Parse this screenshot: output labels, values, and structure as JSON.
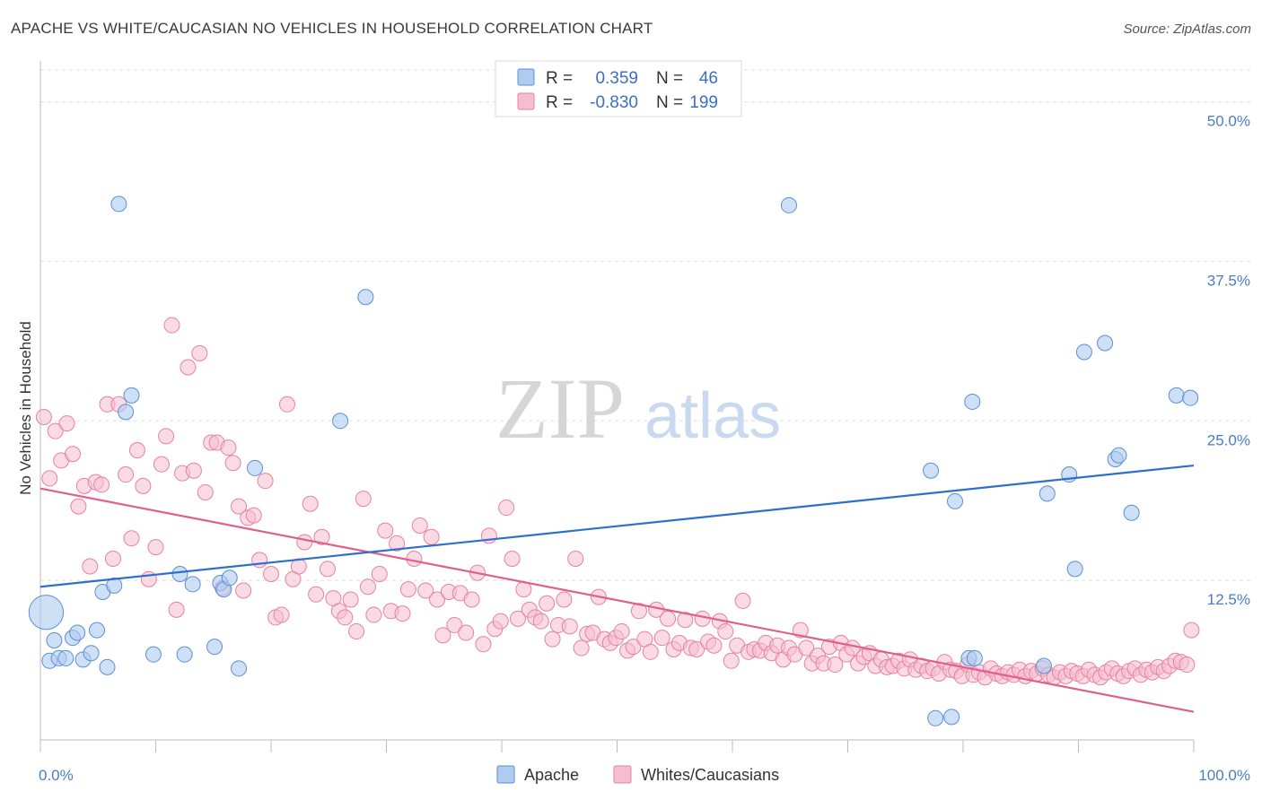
{
  "title": "APACHE VS WHITE/CAUCASIAN NO VEHICLES IN HOUSEHOLD CORRELATION CHART",
  "source": "Source: ZipAtlas.com",
  "watermark": {
    "zip": "ZIP",
    "atlas": "atlas"
  },
  "colors": {
    "apache_fill": "#aecbf0",
    "apache_stroke": "#5b8ed6",
    "apache_line": "#2f6fcc",
    "white_fill": "#f6bdd0",
    "white_stroke": "#e7819f",
    "white_line": "#e0608b",
    "tick_text": "#4a7cc7",
    "grid": "#dddddd"
  },
  "legend": {
    "rows": [
      {
        "r_label": "R =",
        "r_value": "0.359",
        "n_label": "N =",
        "n_value": "46"
      },
      {
        "r_label": "R =",
        "r_value": "-0.830",
        "n_label": "N =",
        "n_value": "199"
      }
    ]
  },
  "bottom_legend": [
    "Apache",
    "Whites/Caucasians"
  ],
  "chart_data": {
    "type": "scatter",
    "xlabel": "",
    "ylabel": "No Vehicles in Household",
    "xlim": [
      0,
      100
    ],
    "ylim": [
      0,
      52.5
    ],
    "x_tick_labels": [
      "0.0%",
      "100.0%"
    ],
    "y_ticks": [
      12.5,
      25.0,
      37.5,
      50.0
    ],
    "y_tick_labels": [
      "12.5%",
      "25.0%",
      "37.5%",
      "50.0%"
    ],
    "grid": true,
    "legend_position": "top-center",
    "series": [
      {
        "name": "Apache",
        "trend": {
          "x": [
            0,
            100
          ],
          "y": [
            12.0,
            21.5
          ]
        },
        "points": [
          [
            0.5,
            10.0,
            3
          ],
          [
            0.8,
            6.2,
            1
          ],
          [
            1.2,
            7.8,
            1
          ],
          [
            1.6,
            6.4,
            1
          ],
          [
            2.2,
            6.4,
            1
          ],
          [
            2.8,
            8.0,
            1
          ],
          [
            3.2,
            8.4,
            1
          ],
          [
            3.7,
            6.3,
            1
          ],
          [
            4.4,
            6.8,
            1
          ],
          [
            4.9,
            8.6,
            1
          ],
          [
            5.4,
            11.6,
            1
          ],
          [
            5.8,
            5.7,
            1
          ],
          [
            6.4,
            12.1,
            1
          ],
          [
            6.8,
            42.0,
            1
          ],
          [
            7.4,
            25.7,
            1
          ],
          [
            7.9,
            27.0,
            1
          ],
          [
            9.8,
            6.7,
            1
          ],
          [
            12.1,
            13.0,
            1
          ],
          [
            12.5,
            6.7,
            1
          ],
          [
            13.2,
            12.2,
            1
          ],
          [
            15.1,
            7.3,
            1
          ],
          [
            15.6,
            12.3,
            1
          ],
          [
            15.9,
            11.8,
            1
          ],
          [
            16.4,
            12.7,
            1
          ],
          [
            17.2,
            5.6,
            1
          ],
          [
            18.6,
            21.3,
            1
          ],
          [
            26.0,
            25.0,
            1
          ],
          [
            28.2,
            34.7,
            1
          ],
          [
            64.9,
            41.9,
            1
          ],
          [
            77.2,
            21.1,
            1
          ],
          [
            77.6,
            1.7,
            1
          ],
          [
            79.0,
            1.8,
            1
          ],
          [
            79.3,
            18.7,
            1
          ],
          [
            80.5,
            6.4,
            1
          ],
          [
            80.8,
            26.5,
            1
          ],
          [
            81.0,
            6.4,
            1
          ],
          [
            87.0,
            5.8,
            1
          ],
          [
            87.3,
            19.3,
            1
          ],
          [
            89.2,
            20.8,
            1
          ],
          [
            89.7,
            13.4,
            1
          ],
          [
            90.5,
            30.4,
            1
          ],
          [
            92.3,
            31.1,
            1
          ],
          [
            93.2,
            22.0,
            1
          ],
          [
            93.5,
            22.3,
            1
          ],
          [
            94.6,
            17.8,
            1
          ],
          [
            98.5,
            27.0,
            1
          ],
          [
            99.7,
            26.8,
            1
          ]
        ]
      },
      {
        "name": "Whites/Caucasians",
        "trend": {
          "x": [
            0,
            100
          ],
          "y": [
            19.7,
            2.2
          ]
        },
        "points": [
          [
            0.3,
            25.3
          ],
          [
            0.8,
            20.5
          ],
          [
            1.3,
            24.2
          ],
          [
            1.8,
            21.9
          ],
          [
            2.3,
            24.8
          ],
          [
            2.8,
            22.4
          ],
          [
            3.3,
            18.3
          ],
          [
            3.8,
            19.9
          ],
          [
            4.3,
            13.6
          ],
          [
            4.8,
            20.2
          ],
          [
            5.3,
            20.0
          ],
          [
            5.8,
            26.3
          ],
          [
            6.3,
            14.2
          ],
          [
            6.8,
            26.3
          ],
          [
            7.4,
            20.8
          ],
          [
            7.9,
            15.8
          ],
          [
            8.4,
            22.7
          ],
          [
            8.9,
            19.9
          ],
          [
            9.4,
            12.6
          ],
          [
            10.0,
            15.1
          ],
          [
            10.5,
            21.6
          ],
          [
            10.9,
            23.8
          ],
          [
            11.4,
            32.5
          ],
          [
            11.8,
            10.2
          ],
          [
            12.3,
            20.9
          ],
          [
            12.8,
            29.2
          ],
          [
            13.3,
            21.1
          ],
          [
            13.8,
            30.3
          ],
          [
            14.3,
            19.4
          ],
          [
            14.8,
            23.3
          ],
          [
            15.3,
            23.3
          ],
          [
            15.8,
            11.9
          ],
          [
            16.3,
            22.9
          ],
          [
            16.7,
            21.7
          ],
          [
            17.2,
            18.3
          ],
          [
            17.6,
            11.7
          ],
          [
            18.0,
            17.4
          ],
          [
            18.5,
            17.6
          ],
          [
            19.0,
            14.1
          ],
          [
            19.5,
            20.3
          ],
          [
            20.0,
            13.0
          ],
          [
            20.4,
            9.6
          ],
          [
            20.9,
            9.8
          ],
          [
            21.4,
            26.3
          ],
          [
            21.9,
            12.6
          ],
          [
            22.4,
            13.6
          ],
          [
            22.9,
            15.5
          ],
          [
            23.4,
            18.5
          ],
          [
            23.9,
            11.4
          ],
          [
            24.4,
            15.9
          ],
          [
            24.9,
            13.4
          ],
          [
            25.4,
            11.1
          ],
          [
            25.9,
            10.1
          ],
          [
            26.4,
            9.6
          ],
          [
            26.9,
            11.0
          ],
          [
            27.4,
            8.5
          ],
          [
            28.0,
            18.9
          ],
          [
            28.4,
            12.0
          ],
          [
            28.9,
            9.8
          ],
          [
            29.4,
            13.0
          ],
          [
            29.9,
            16.4
          ],
          [
            30.4,
            10.1
          ],
          [
            30.9,
            15.4
          ],
          [
            31.4,
            9.9
          ],
          [
            31.9,
            11.8
          ],
          [
            32.4,
            14.2
          ],
          [
            32.9,
            16.8
          ],
          [
            33.4,
            11.7
          ],
          [
            33.9,
            15.9
          ],
          [
            34.4,
            11.0
          ],
          [
            34.9,
            8.2
          ],
          [
            35.4,
            11.6
          ],
          [
            35.9,
            9.0
          ],
          [
            36.4,
            11.5
          ],
          [
            36.9,
            8.4
          ],
          [
            37.4,
            11.0
          ],
          [
            37.9,
            13.1
          ],
          [
            38.4,
            7.5
          ],
          [
            38.9,
            16.0
          ],
          [
            39.4,
            8.7
          ],
          [
            39.9,
            9.3
          ],
          [
            40.4,
            18.2
          ],
          [
            40.9,
            14.2
          ],
          [
            41.4,
            9.5
          ],
          [
            41.9,
            11.8
          ],
          [
            42.4,
            10.2
          ],
          [
            42.9,
            9.6
          ],
          [
            43.4,
            9.3
          ],
          [
            43.9,
            10.7
          ],
          [
            44.4,
            7.9
          ],
          [
            44.9,
            9.0
          ],
          [
            45.4,
            11.0
          ],
          [
            45.9,
            8.9
          ],
          [
            46.4,
            14.2
          ],
          [
            46.9,
            7.2
          ],
          [
            47.4,
            8.3
          ],
          [
            47.9,
            8.4
          ],
          [
            48.4,
            11.2
          ],
          [
            48.9,
            7.9
          ],
          [
            49.4,
            7.6
          ],
          [
            49.9,
            8.0
          ],
          [
            50.4,
            8.5
          ],
          [
            50.9,
            7.0
          ],
          [
            51.4,
            7.3
          ],
          [
            51.9,
            10.1
          ],
          [
            52.4,
            7.9
          ],
          [
            52.9,
            6.9
          ],
          [
            53.4,
            10.2
          ],
          [
            53.9,
            8.0
          ],
          [
            54.4,
            9.5
          ],
          [
            54.9,
            7.1
          ],
          [
            55.4,
            7.6
          ],
          [
            55.9,
            9.4
          ],
          [
            56.4,
            7.2
          ],
          [
            56.9,
            7.1
          ],
          [
            57.4,
            9.5
          ],
          [
            57.9,
            7.7
          ],
          [
            58.4,
            7.4
          ],
          [
            58.9,
            9.3
          ],
          [
            59.4,
            8.5
          ],
          [
            59.9,
            6.2
          ],
          [
            60.4,
            7.4
          ],
          [
            60.9,
            10.9
          ],
          [
            61.4,
            6.9
          ],
          [
            61.9,
            7.1
          ],
          [
            62.4,
            7.0
          ],
          [
            62.9,
            7.6
          ],
          [
            63.4,
            6.8
          ],
          [
            63.9,
            7.4
          ],
          [
            64.4,
            6.3
          ],
          [
            64.9,
            7.2
          ],
          [
            65.4,
            6.7
          ],
          [
            65.9,
            8.6
          ],
          [
            66.4,
            7.2
          ],
          [
            66.9,
            6.0
          ],
          [
            67.4,
            6.6
          ],
          [
            67.9,
            6.0
          ],
          [
            68.4,
            7.3
          ],
          [
            68.9,
            5.9
          ],
          [
            69.4,
            7.6
          ],
          [
            69.9,
            6.7
          ],
          [
            70.4,
            7.2
          ],
          [
            70.9,
            6.0
          ],
          [
            71.4,
            6.5
          ],
          [
            71.9,
            6.8
          ],
          [
            72.4,
            5.8
          ],
          [
            72.9,
            6.3
          ],
          [
            73.4,
            5.7
          ],
          [
            73.9,
            5.8
          ],
          [
            74.4,
            6.2
          ],
          [
            74.9,
            5.6
          ],
          [
            75.4,
            6.3
          ],
          [
            75.9,
            5.5
          ],
          [
            76.4,
            5.8
          ],
          [
            76.9,
            5.4
          ],
          [
            77.4,
            5.6
          ],
          [
            77.9,
            5.2
          ],
          [
            78.4,
            6.1
          ],
          [
            78.9,
            5.5
          ],
          [
            79.4,
            5.4
          ],
          [
            79.9,
            5.0
          ],
          [
            80.4,
            5.9
          ],
          [
            80.9,
            5.1
          ],
          [
            81.4,
            5.3
          ],
          [
            81.9,
            4.9
          ],
          [
            82.4,
            5.6
          ],
          [
            82.9,
            5.2
          ],
          [
            83.4,
            5.0
          ],
          [
            83.9,
            5.3
          ],
          [
            84.4,
            5.1
          ],
          [
            84.9,
            5.5
          ],
          [
            85.4,
            5.0
          ],
          [
            85.9,
            5.4
          ],
          [
            86.4,
            5.2
          ],
          [
            86.9,
            5.6
          ],
          [
            87.4,
            5.1
          ],
          [
            87.9,
            4.9
          ],
          [
            88.4,
            5.3
          ],
          [
            88.9,
            5.0
          ],
          [
            89.4,
            5.4
          ],
          [
            89.9,
            5.2
          ],
          [
            90.4,
            5.0
          ],
          [
            90.9,
            5.5
          ],
          [
            91.4,
            5.1
          ],
          [
            91.9,
            4.9
          ],
          [
            92.4,
            5.3
          ],
          [
            92.9,
            5.6
          ],
          [
            93.4,
            5.2
          ],
          [
            93.9,
            5.0
          ],
          [
            94.4,
            5.4
          ],
          [
            94.9,
            5.6
          ],
          [
            95.4,
            5.1
          ],
          [
            95.9,
            5.5
          ],
          [
            96.4,
            5.3
          ],
          [
            96.9,
            5.7
          ],
          [
            97.4,
            5.4
          ],
          [
            97.9,
            5.8
          ],
          [
            98.4,
            6.2
          ],
          [
            98.9,
            6.1
          ],
          [
            99.4,
            5.9
          ],
          [
            99.8,
            8.6
          ]
        ]
      }
    ]
  }
}
